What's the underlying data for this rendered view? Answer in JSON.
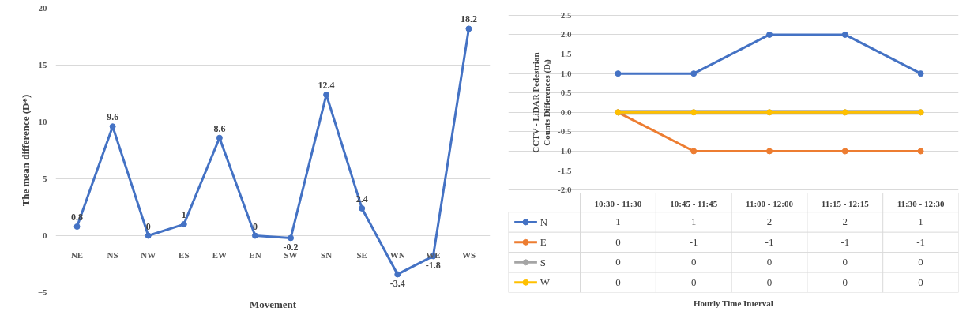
{
  "chart_data": [
    {
      "type": "line",
      "ylabel": "The mean difference (D*)",
      "xlabel": "Movement",
      "categories": [
        "NE",
        "NS",
        "NW",
        "ES",
        "EW",
        "EN",
        "SW",
        "SN",
        "SE",
        "WN",
        "WE",
        "WS"
      ],
      "series": [
        {
          "color": "#4472c4",
          "values": [
            0.8,
            9.6,
            0,
            1,
            8.6,
            0,
            -0.2,
            12.4,
            2.4,
            -3.4,
            -1.8,
            18.2
          ]
        }
      ],
      "ylim": [
        -5,
        20
      ],
      "yticks": [
        -5,
        0,
        5,
        10,
        15,
        20
      ],
      "grid": "y",
      "marker": "circle",
      "data_labels": true
    },
    {
      "type": "line",
      "ylabel": "CCTV - LiDAR Pedestrian Counts Differences (Dᵢ)",
      "xlabel": "Hourly Time Interval",
      "categories": [
        "10:30 - 11:30",
        "10:45 - 11:45",
        "11:00 - 12:00",
        "11:15 - 12:15",
        "11:30 - 12:30"
      ],
      "series": [
        {
          "name": "N",
          "color": "#4472c4",
          "values": [
            1,
            1,
            2,
            2,
            1
          ]
        },
        {
          "name": "E",
          "color": "#ed7d31",
          "values": [
            0,
            -1,
            -1,
            -1,
            -1
          ]
        },
        {
          "name": "S",
          "color": "#a5a5a5",
          "values": [
            0,
            0,
            0,
            0,
            0
          ]
        },
        {
          "name": "W",
          "color": "#ffc000",
          "values": [
            0,
            0,
            0,
            0,
            0
          ]
        }
      ],
      "ylim": [
        -2,
        2.5
      ],
      "yticks": [
        {
          "value": -2,
          "label": "-2.0"
        },
        {
          "value": -1.5,
          "label": "-1.5"
        },
        {
          "value": -1,
          "label": "-1.0"
        },
        {
          "value": -0.5,
          "label": "-0.5"
        },
        {
          "value": 0,
          "label": "0.0"
        },
        {
          "value": 0.5,
          "label": "0.5"
        },
        {
          "value": 1,
          "label": "1.0"
        },
        {
          "value": 1.5,
          "label": "1.5"
        },
        {
          "value": 2,
          "label": "2.0"
        },
        {
          "value": 2.5,
          "label": "2.5"
        }
      ],
      "grid": "y",
      "marker": "circle",
      "data_labels": true,
      "legend": "bottom"
    }
  ]
}
